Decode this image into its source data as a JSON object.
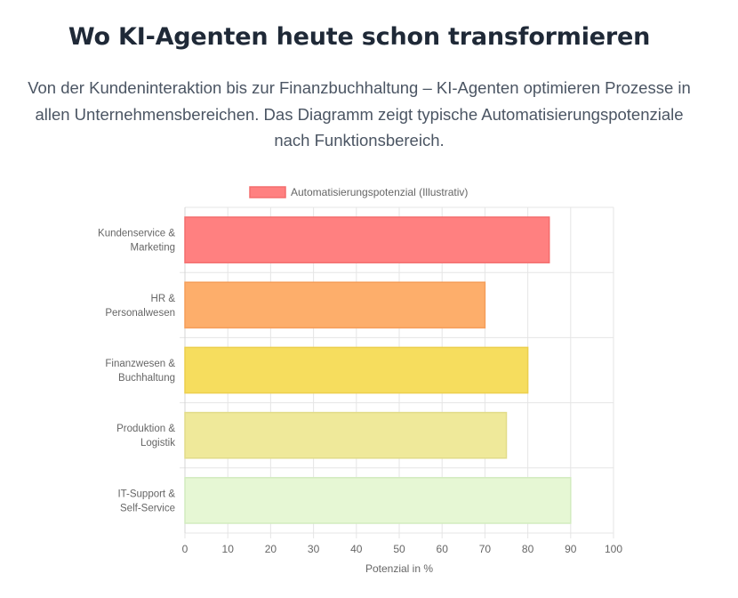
{
  "header": {
    "title": "Wo KI-Agenten heute schon transformieren",
    "subtitle": "Von der Kundeninteraktion bis zur Finanzbuchhaltung – KI-Agenten optimieren Prozesse in allen Unternehmensbereichen. Das Diagramm zeigt typische Automatisierungspotenziale nach Funktionsbereich."
  },
  "chart_data": {
    "type": "bar",
    "orientation": "horizontal",
    "categories": [
      [
        "Kundenservice &",
        "Marketing"
      ],
      [
        "HR &",
        "Personalwesen"
      ],
      [
        "Finanzwesen &",
        "Buchhaltung"
      ],
      [
        "Produktion &",
        "Logistik"
      ],
      [
        "IT-Support &",
        "Self-Service"
      ]
    ],
    "series": [
      {
        "name": "Automatisierungspotenzial (Illustrativ)",
        "values": [
          85,
          70,
          80,
          75,
          90
        ]
      }
    ],
    "bar_colors": [
      "#ff8080",
      "#fdae6b",
      "#f6dd5e",
      "#efe99a",
      "#e6f7d4"
    ],
    "bar_border_colors": [
      "#f46d6d",
      "#f59e5a",
      "#eccf4d",
      "#e2dc8a",
      "#d2ecbf"
    ],
    "legend_color": "#ff8080",
    "legend_border_color": "#f46d6d",
    "xlabel": "Potenzial in %",
    "xlim": [
      0,
      100
    ],
    "xticks": [
      0,
      10,
      20,
      30,
      40,
      50,
      60,
      70,
      80,
      90,
      100
    ],
    "grid": true,
    "legend_position": "top"
  }
}
